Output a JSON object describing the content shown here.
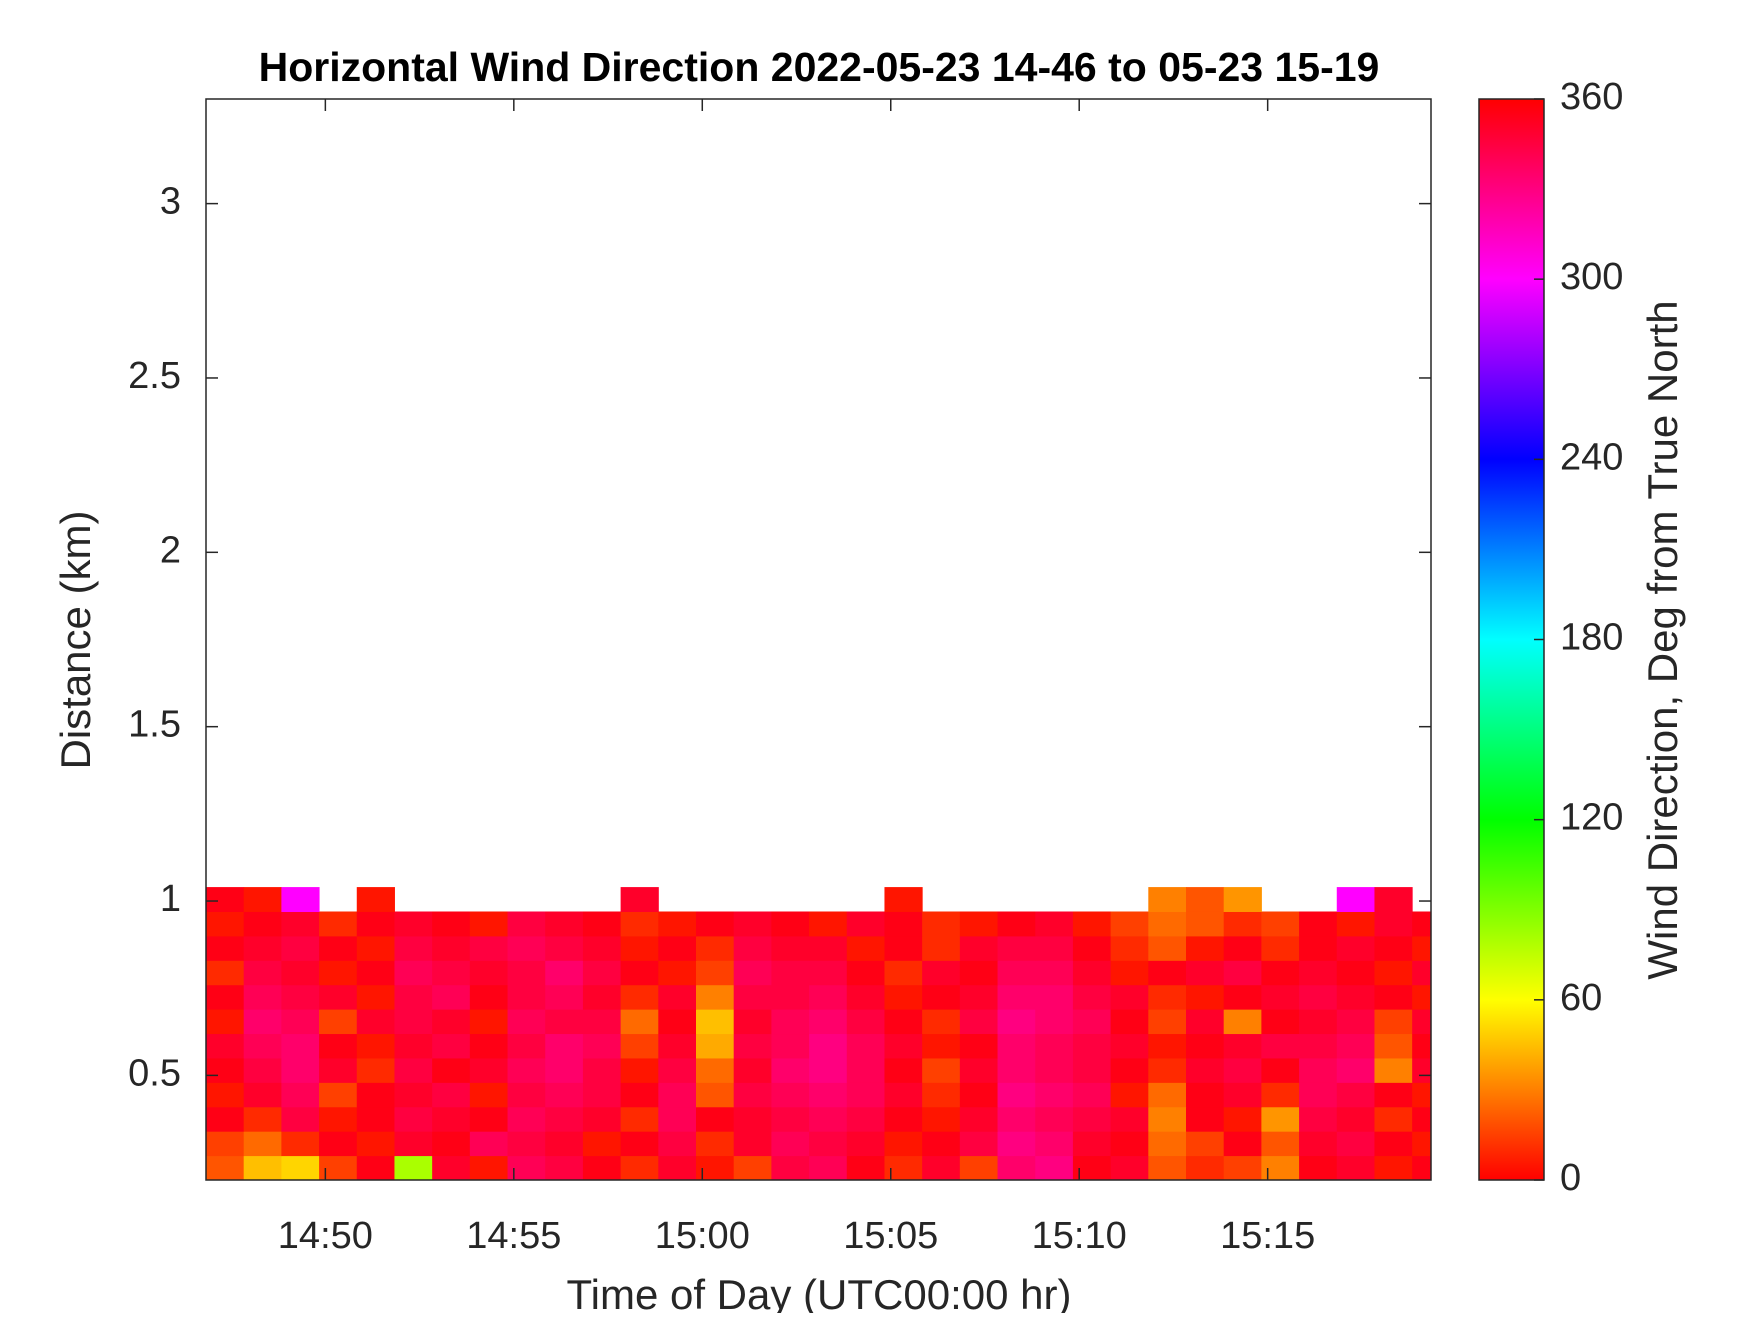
{
  "chart_data": {
    "type": "heatmap",
    "title": "Horizontal Wind Direction 2022-05-23 14-46 to 05-23 15-19",
    "x_label": "Time of Day (UTC00:00 hr)",
    "y_label": "Distance (km)",
    "colorbar_label": "Wind Direction, Deg from True North",
    "colormap": "hsv",
    "xlim": [
      "14:46:50",
      "15:19:20"
    ],
    "xticks": [
      "14:50",
      "14:55",
      "15:00",
      "15:05",
      "15:10",
      "15:15"
    ],
    "ylim": [
      0.2,
      3.3
    ],
    "yticks": [
      0.5,
      1,
      1.5,
      2,
      2.5,
      3
    ],
    "clim": [
      0,
      360
    ],
    "cticks": [
      0,
      60,
      120,
      180,
      240,
      300,
      360
    ],
    "x_bins": [
      "14:46:50",
      "14:47:50",
      "14:48:50",
      "14:49:50",
      "14:50:50",
      "14:51:50",
      "14:52:50",
      "14:53:50",
      "14:54:50",
      "14:55:50",
      "14:56:50",
      "14:57:50",
      "14:58:50",
      "14:59:50",
      "15:00:50",
      "15:01:50",
      "15:02:50",
      "15:03:50",
      "15:04:50",
      "15:05:50",
      "15:06:50",
      "15:07:50",
      "15:08:50",
      "15:09:50",
      "15:10:50",
      "15:11:50",
      "15:12:50",
      "15:13:50",
      "15:14:50",
      "15:15:50",
      "15:16:50",
      "15:17:50",
      "15:18:50",
      "15:19:20"
    ],
    "y_bins": [
      0.2,
      0.27,
      0.34,
      0.41,
      0.48,
      0.55,
      0.62,
      0.69,
      0.76,
      0.83,
      0.9,
      0.97,
      1.04
    ],
    "z": [
      [
        20,
        45,
        50,
        15,
        355,
        80,
        350,
        5,
        340,
        345,
        355,
        10,
        350,
        5,
        15,
        345,
        340,
        355,
        10,
        350,
        15,
        335,
        330,
        355,
        350,
        20,
        10,
        15,
        30,
        355,
        350,
        5,
        355
      ],
      [
        15,
        25,
        10,
        355,
        5,
        350,
        355,
        340,
        345,
        350,
        5,
        355,
        345,
        10,
        350,
        340,
        345,
        350,
        5,
        355,
        345,
        330,
        335,
        350,
        355,
        25,
        15,
        355,
        20,
        350,
        345,
        355,
        5
      ],
      [
        355,
        10,
        345,
        5,
        355,
        345,
        350,
        355,
        340,
        345,
        350,
        10,
        340,
        355,
        350,
        345,
        340,
        345,
        355,
        5,
        350,
        335,
        340,
        345,
        350,
        30,
        355,
        5,
        35,
        345,
        350,
        10,
        355
      ],
      [
        5,
        350,
        340,
        15,
        355,
        350,
        345,
        5,
        345,
        340,
        345,
        355,
        340,
        20,
        345,
        340,
        335,
        340,
        350,
        10,
        355,
        330,
        335,
        340,
        5,
        25,
        355,
        350,
        10,
        340,
        345,
        355,
        5
      ],
      [
        355,
        345,
        335,
        350,
        10,
        345,
        355,
        350,
        340,
        335,
        345,
        5,
        345,
        25,
        350,
        335,
        330,
        340,
        355,
        15,
        350,
        335,
        340,
        345,
        355,
        10,
        350,
        345,
        355,
        340,
        335,
        30,
        350
      ],
      [
        350,
        340,
        335,
        355,
        5,
        350,
        345,
        355,
        345,
        335,
        340,
        15,
        350,
        40,
        345,
        340,
        330,
        340,
        350,
        5,
        355,
        335,
        340,
        345,
        350,
        5,
        355,
        350,
        345,
        345,
        340,
        20,
        355
      ],
      [
        5,
        335,
        340,
        15,
        350,
        345,
        350,
        5,
        340,
        345,
        345,
        25,
        355,
        45,
        350,
        340,
        335,
        345,
        355,
        10,
        345,
        330,
        335,
        340,
        355,
        15,
        350,
        30,
        355,
        350,
        345,
        15,
        350
      ],
      [
        355,
        340,
        345,
        350,
        5,
        345,
        340,
        355,
        345,
        340,
        350,
        10,
        350,
        30,
        345,
        345,
        340,
        350,
        5,
        355,
        350,
        335,
        335,
        345,
        350,
        10,
        5,
        355,
        350,
        345,
        350,
        355,
        5
      ],
      [
        10,
        345,
        350,
        5,
        355,
        340,
        345,
        350,
        345,
        335,
        345,
        355,
        5,
        15,
        340,
        345,
        345,
        355,
        10,
        350,
        355,
        340,
        340,
        350,
        5,
        355,
        350,
        345,
        355,
        350,
        355,
        5,
        350
      ],
      [
        355,
        350,
        345,
        355,
        5,
        345,
        350,
        345,
        340,
        345,
        350,
        5,
        355,
        10,
        345,
        350,
        350,
        5,
        355,
        10,
        350,
        345,
        345,
        355,
        10,
        20,
        5,
        355,
        10,
        355,
        350,
        355,
        5
      ],
      [
        5,
        355,
        350,
        10,
        355,
        350,
        355,
        5,
        345,
        350,
        355,
        10,
        5,
        355,
        350,
        355,
        5,
        350,
        355,
        10,
        5,
        355,
        350,
        5,
        15,
        25,
        20,
        10,
        15,
        355,
        5,
        350,
        355
      ],
      [
        355,
        5,
        300,
        null,
        5,
        null,
        null,
        null,
        null,
        null,
        null,
        350,
        null,
        null,
        null,
        null,
        null,
        null,
        5,
        null,
        null,
        null,
        null,
        null,
        null,
        30,
        20,
        35,
        null,
        null,
        300,
        350,
        null
      ]
    ]
  }
}
